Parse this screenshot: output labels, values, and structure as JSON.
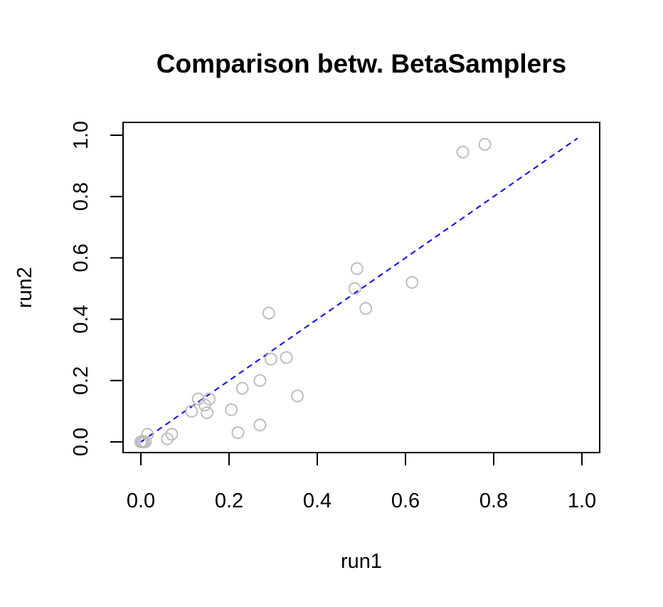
{
  "chart_data": {
    "type": "scatter",
    "title": "Comparison betw. BetaSamplers",
    "xlabel": "run1",
    "ylabel": "run2",
    "xlim": [
      0.0,
      1.0
    ],
    "ylim": [
      0.0,
      1.0
    ],
    "x_ticks": [
      "0.0",
      "0.2",
      "0.4",
      "0.6",
      "0.8",
      "1.0"
    ],
    "y_ticks": [
      "0.0",
      "0.2",
      "0.4",
      "0.6",
      "0.8",
      "1.0"
    ],
    "grid": false,
    "legend": "none",
    "series": [
      {
        "marker": "open-circle",
        "color": "#bebebe",
        "points": [
          {
            "x": 0.0,
            "y": 0.0
          },
          {
            "x": 0.002,
            "y": 0.001
          },
          {
            "x": 0.004,
            "y": 0.002
          },
          {
            "x": 0.006,
            "y": 0.0
          },
          {
            "x": 0.01,
            "y": 0.0
          },
          {
            "x": 0.015,
            "y": 0.025
          },
          {
            "x": 0.06,
            "y": 0.01
          },
          {
            "x": 0.07,
            "y": 0.025
          },
          {
            "x": 0.115,
            "y": 0.1
          },
          {
            "x": 0.13,
            "y": 0.14
          },
          {
            "x": 0.145,
            "y": 0.12
          },
          {
            "x": 0.15,
            "y": 0.095
          },
          {
            "x": 0.155,
            "y": 0.14
          },
          {
            "x": 0.205,
            "y": 0.105
          },
          {
            "x": 0.22,
            "y": 0.03
          },
          {
            "x": 0.23,
            "y": 0.175
          },
          {
            "x": 0.27,
            "y": 0.2
          },
          {
            "x": 0.27,
            "y": 0.055
          },
          {
            "x": 0.29,
            "y": 0.42
          },
          {
            "x": 0.295,
            "y": 0.27
          },
          {
            "x": 0.33,
            "y": 0.275
          },
          {
            "x": 0.355,
            "y": 0.15
          },
          {
            "x": 0.485,
            "y": 0.5
          },
          {
            "x": 0.49,
            "y": 0.565
          },
          {
            "x": 0.51,
            "y": 0.435
          },
          {
            "x": 0.615,
            "y": 0.52
          },
          {
            "x": 0.73,
            "y": 0.945
          },
          {
            "x": 0.78,
            "y": 0.97
          }
        ]
      }
    ],
    "reference_line": {
      "style": "dashed",
      "color": "#0000ee",
      "x": [
        0.0,
        0.99
      ],
      "y": [
        0.0,
        0.99
      ]
    }
  }
}
